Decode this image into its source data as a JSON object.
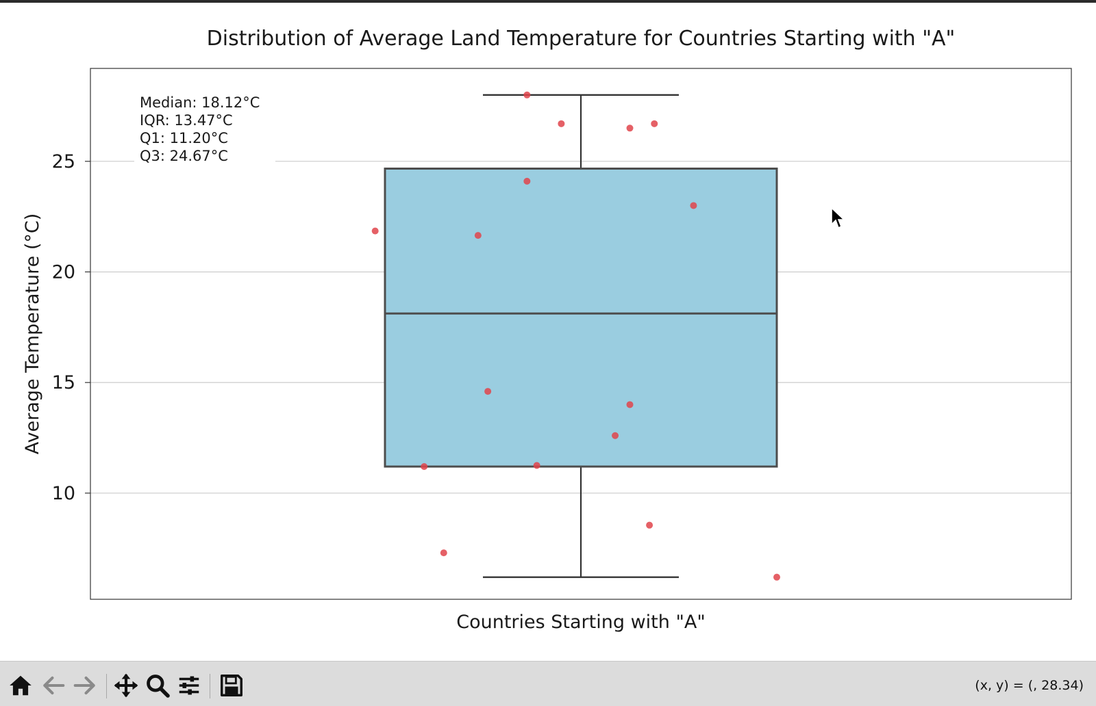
{
  "toolbar": {
    "buttons": [
      {
        "name": "home-button",
        "icon": "home-icon"
      },
      {
        "name": "back-button",
        "icon": "arrow-left-icon"
      },
      {
        "name": "forward-button",
        "icon": "arrow-right-icon"
      },
      {
        "name": "pan-button",
        "icon": "move-icon"
      },
      {
        "name": "zoom-button",
        "icon": "magnifier-icon"
      },
      {
        "name": "configure-subplots-button",
        "icon": "sliders-icon"
      },
      {
        "name": "save-button",
        "icon": "floppy-disk-icon"
      }
    ],
    "coords_text": "(x, y) = (, 28.34)"
  },
  "colors": {
    "box_fill": "#9acde0",
    "box_edge": "#4d4d4d",
    "points": "#e0444b",
    "grid": "#cccccc",
    "toolbar_bg": "#dcdcdc"
  },
  "chart_data": {
    "type": "box",
    "title": "Distribution of Average Land Temperature for Countries Starting with \"A\"",
    "xlabel": "Countries Starting with \"A\"",
    "ylabel": "Average Temperature (°C)",
    "ylim": [
      5.2,
      29.2
    ],
    "yticks": [
      10,
      15,
      20,
      25
    ],
    "grid": "horizontal",
    "box": {
      "whisker_low": 6.2,
      "q1": 11.2,
      "median": 18.12,
      "q3": 24.67,
      "whisker_high": 28.0
    },
    "annotations": [
      "Median: 18.12°C",
      "IQR: 13.47°C",
      "Q1: 11.20°C",
      "Q3: 24.67°C"
    ],
    "points": [
      {
        "x": -0.11,
        "y": 28.0
      },
      {
        "x": -0.04,
        "y": 26.7
      },
      {
        "x": 0.1,
        "y": 26.5
      },
      {
        "x": 0.15,
        "y": 26.7
      },
      {
        "x": -0.11,
        "y": 24.1
      },
      {
        "x": 0.23,
        "y": 23.0
      },
      {
        "x": -0.42,
        "y": 21.85
      },
      {
        "x": -0.21,
        "y": 21.65
      },
      {
        "x": -0.19,
        "y": 14.6
      },
      {
        "x": 0.1,
        "y": 14.0
      },
      {
        "x": 0.07,
        "y": 12.6
      },
      {
        "x": -0.32,
        "y": 11.2
      },
      {
        "x": -0.09,
        "y": 11.25
      },
      {
        "x": 0.14,
        "y": 8.55
      },
      {
        "x": -0.28,
        "y": 7.3
      },
      {
        "x": 0.4,
        "y": 6.2
      }
    ]
  }
}
